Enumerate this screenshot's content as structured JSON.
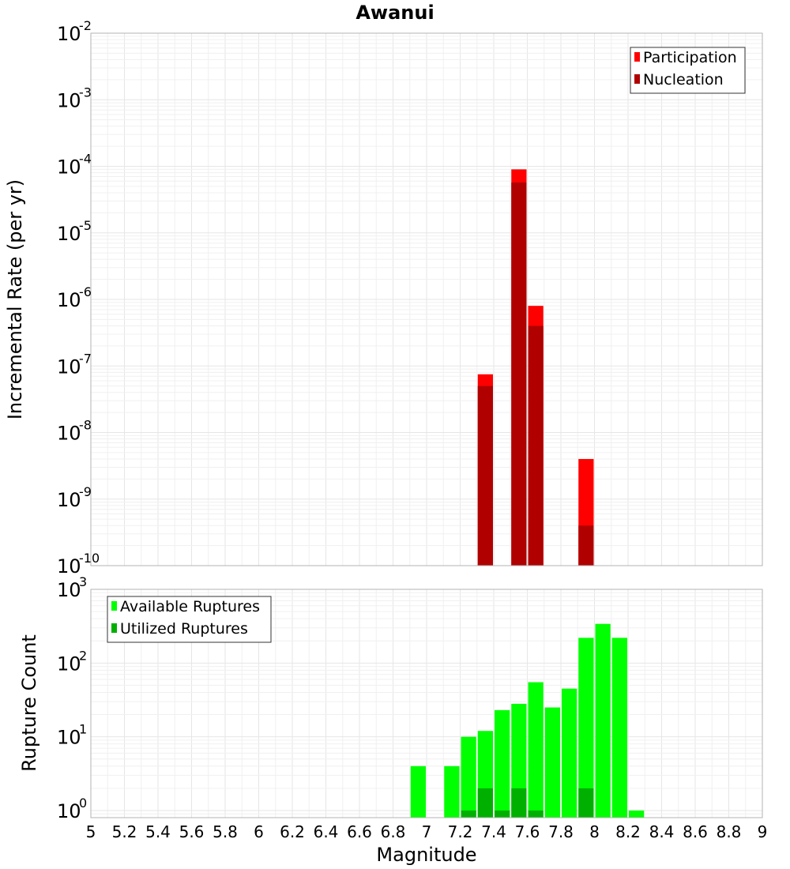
{
  "chart_data": [
    {
      "type": "bar",
      "title": "Awanui",
      "ylabel": "Incremental Rate (per yr)",
      "xlabel": "",
      "yscale": "log",
      "ylim": [
        1e-10,
        0.01
      ],
      "xlim": [
        5,
        9
      ],
      "y_tick_exponents": [
        "-10",
        "-9",
        "-8",
        "-7",
        "-6",
        "-5",
        "-4",
        "-3",
        "-2"
      ],
      "legend_position": "top-right",
      "series": [
        {
          "name": "Participation",
          "color": "#ff0000",
          "x": [
            7.35,
            7.55,
            7.65,
            7.95
          ],
          "values": [
            7.5e-08,
            9e-05,
            8e-07,
            4e-09
          ]
        },
        {
          "name": "Nucleation",
          "color": "#b00000",
          "x": [
            7.35,
            7.55,
            7.65,
            7.95
          ],
          "values": [
            5e-08,
            5.7e-05,
            4e-07,
            4e-10
          ]
        }
      ]
    },
    {
      "type": "bar",
      "title": "",
      "ylabel": "Rupture Count",
      "xlabel": "Magnitude",
      "yscale": "log",
      "ylim": [
        0.8,
        1000
      ],
      "xlim": [
        5,
        9
      ],
      "y_tick_exponents": [
        "0",
        "1",
        "2",
        "3"
      ],
      "x_ticks": [
        "5",
        "5.2",
        "5.4",
        "5.6",
        "5.8",
        "6",
        "6.2",
        "6.4",
        "6.6",
        "6.8",
        "7",
        "7.2",
        "7.4",
        "7.6",
        "7.8",
        "8",
        "8.2",
        "8.4",
        "8.6",
        "8.8",
        "9"
      ],
      "legend_position": "top-left",
      "series": [
        {
          "name": "Available Ruptures",
          "color": "#00ff00",
          "x": [
            6.95,
            7.15,
            7.25,
            7.35,
            7.45,
            7.55,
            7.65,
            7.75,
            7.85,
            7.95,
            8.05,
            8.15,
            8.25
          ],
          "values": [
            4,
            4,
            10,
            12,
            23,
            28,
            55,
            25,
            45,
            220,
            340,
            220,
            1
          ]
        },
        {
          "name": "Utilized Ruptures",
          "color": "#00b000",
          "x": [
            7.25,
            7.35,
            7.45,
            7.55,
            7.65,
            7.95
          ],
          "values": [
            1,
            2,
            1,
            2,
            1,
            2
          ]
        }
      ]
    }
  ]
}
